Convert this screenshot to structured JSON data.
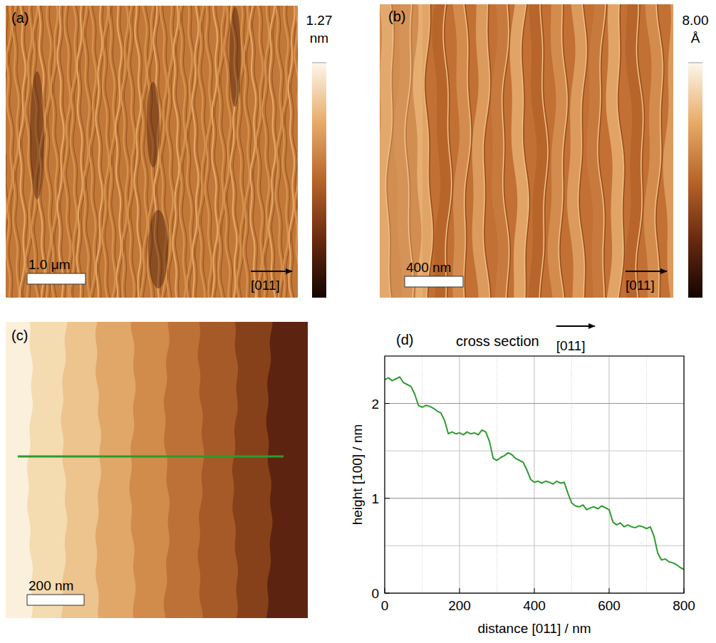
{
  "chart_data": [
    {
      "type": "image",
      "label": "(a)",
      "scale_bar": "1.0 μm",
      "direction": "[011]",
      "colorbar_range": [
        0,
        1.27
      ],
      "colorbar_ticks": [
        {
          "value": 1.27,
          "label": "1.27"
        }
      ],
      "colorbar_unit": "nm"
    },
    {
      "type": "image",
      "label": "(b)",
      "scale_bar": "400 nm",
      "direction": "[011]",
      "colorbar_range": [
        0,
        8
      ],
      "colorbar_ticks": [
        {
          "value": 8,
          "label": "8.00"
        }
      ],
      "colorbar_unit": "Å"
    },
    {
      "type": "image",
      "label": "(c)",
      "scale_bar": "200 nm"
    },
    {
      "type": "line",
      "label": "(d)",
      "title": "cross section",
      "direction": "[011]",
      "x_label": "distance [011] / nm",
      "y_label": "height [100] / nm",
      "color": "#2e9a2e",
      "grid": true,
      "xlim": [
        0,
        800
      ],
      "xticks": [
        0,
        200,
        400,
        600,
        800
      ],
      "ylim": [
        0,
        2.5
      ],
      "yticks": [
        0,
        1,
        2
      ],
      "x": [
        0,
        10,
        20,
        30,
        40,
        50,
        60,
        70,
        80,
        90,
        100,
        110,
        120,
        130,
        140,
        150,
        160,
        170,
        180,
        190,
        200,
        210,
        220,
        230,
        240,
        250,
        260,
        270,
        280,
        290,
        300,
        310,
        320,
        330,
        340,
        350,
        360,
        370,
        380,
        390,
        400,
        410,
        420,
        430,
        440,
        450,
        460,
        470,
        480,
        490,
        500,
        510,
        520,
        530,
        540,
        550,
        560,
        570,
        580,
        590,
        600,
        610,
        620,
        630,
        640,
        650,
        660,
        670,
        680,
        690,
        700,
        710,
        720,
        730,
        740,
        750,
        760,
        770,
        780,
        790,
        800
      ],
      "values": [
        2.25,
        2.27,
        2.24,
        2.26,
        2.28,
        2.22,
        2.2,
        2.18,
        2.1,
        1.98,
        1.96,
        1.98,
        1.97,
        1.95,
        1.92,
        1.9,
        1.82,
        1.68,
        1.7,
        1.68,
        1.69,
        1.67,
        1.7,
        1.68,
        1.69,
        1.67,
        1.72,
        1.7,
        1.6,
        1.42,
        1.4,
        1.43,
        1.45,
        1.48,
        1.46,
        1.42,
        1.4,
        1.38,
        1.3,
        1.2,
        1.17,
        1.18,
        1.16,
        1.18,
        1.17,
        1.15,
        1.18,
        1.16,
        1.17,
        1.05,
        0.95,
        0.92,
        0.91,
        0.93,
        0.88,
        0.9,
        0.91,
        0.89,
        0.92,
        0.9,
        0.88,
        0.75,
        0.72,
        0.74,
        0.7,
        0.72,
        0.7,
        0.69,
        0.71,
        0.7,
        0.68,
        0.7,
        0.6,
        0.42,
        0.35,
        0.36,
        0.33,
        0.32,
        0.3,
        0.27,
        0.25
      ]
    }
  ]
}
